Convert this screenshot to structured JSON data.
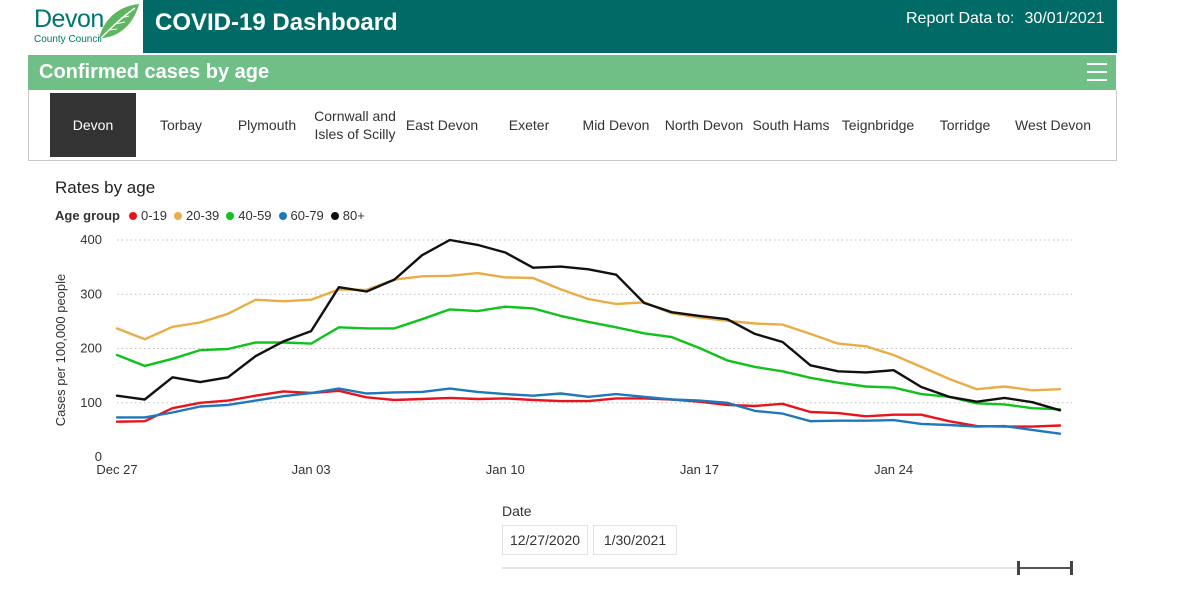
{
  "header": {
    "logo_name": "Devon",
    "logo_sub": "County Council",
    "title": "COVID-19 Dashboard",
    "report_label": "Report Data to:",
    "report_date": "30/01/2021"
  },
  "banner": {
    "title": "Confirmed cases by age"
  },
  "tabs": [
    {
      "label": "Devon",
      "active": true
    },
    {
      "label": "Torbay"
    },
    {
      "label": "Plymouth"
    },
    {
      "label": "Cornwall and Isles of Scilly"
    },
    {
      "label": "East Devon"
    },
    {
      "label": "Exeter"
    },
    {
      "label": "Mid Devon"
    },
    {
      "label": "North Devon"
    },
    {
      "label": "South Hams"
    },
    {
      "label": "Teignbridge"
    },
    {
      "label": "Torridge"
    },
    {
      "label": "West Devon"
    }
  ],
  "chart": {
    "title": "Rates by age",
    "legend_title": "Age group"
  },
  "date_slicer": {
    "label": "Date",
    "start": "12/27/2020",
    "end": "1/30/2021"
  },
  "chart_data": {
    "type": "line",
    "title": "Rates by age",
    "xlabel": "",
    "ylabel": "Cases per 100,000 people",
    "ylim": [
      0,
      400
    ],
    "yticks": [
      0,
      100,
      200,
      300,
      400
    ],
    "grid": true,
    "legend_position": "top-left",
    "x": [
      "2020-12-27",
      "2020-12-28",
      "2020-12-29",
      "2020-12-30",
      "2020-12-31",
      "2021-01-01",
      "2021-01-02",
      "2021-01-03",
      "2021-01-04",
      "2021-01-05",
      "2021-01-06",
      "2021-01-07",
      "2021-01-08",
      "2021-01-09",
      "2021-01-10",
      "2021-01-11",
      "2021-01-12",
      "2021-01-13",
      "2021-01-14",
      "2021-01-15",
      "2021-01-16",
      "2021-01-17",
      "2021-01-18",
      "2021-01-19",
      "2021-01-20",
      "2021-01-21",
      "2021-01-22",
      "2021-01-23",
      "2021-01-24",
      "2021-01-25",
      "2021-01-26",
      "2021-01-27",
      "2021-01-28",
      "2021-01-29",
      "2021-01-30"
    ],
    "xtick_labels": [
      {
        "index": 0,
        "label": "Dec 27"
      },
      {
        "index": 7,
        "label": "Jan 03"
      },
      {
        "index": 14,
        "label": "Jan 10"
      },
      {
        "index": 21,
        "label": "Jan 17"
      },
      {
        "index": 28,
        "label": "Jan 24"
      }
    ],
    "series": [
      {
        "name": "0-19",
        "color": "#e8141c",
        "values": [
          65,
          66,
          90,
          100,
          104,
          113,
          121,
          118,
          122,
          110,
          105,
          107,
          109,
          107,
          108,
          105,
          103,
          103,
          108,
          108,
          106,
          102,
          96,
          94,
          98,
          83,
          81,
          75,
          78,
          78,
          66,
          57,
          56,
          56,
          58
        ]
      },
      {
        "name": "20-39",
        "color": "#e9ad46",
        "values": [
          237,
          217,
          240,
          248,
          264,
          290,
          287,
          290,
          309,
          308,
          327,
          333,
          334,
          339,
          331,
          330,
          309,
          291,
          282,
          285,
          265,
          257,
          251,
          246,
          244,
          227,
          209,
          204,
          188,
          166,
          144,
          125,
          130,
          123,
          125
        ]
      },
      {
        "name": "40-59",
        "color": "#10c21c",
        "values": [
          188,
          168,
          181,
          197,
          199,
          211,
          211,
          209,
          239,
          237,
          237,
          254,
          272,
          269,
          277,
          274,
          260,
          249,
          239,
          228,
          221,
          201,
          178,
          166,
          158,
          146,
          137,
          130,
          128,
          116,
          111,
          99,
          97,
          90,
          88
        ]
      },
      {
        "name": "60-79",
        "color": "#1f77bc",
        "values": [
          73,
          73,
          82,
          93,
          96,
          104,
          112,
          118,
          126,
          117,
          119,
          120,
          126,
          120,
          116,
          113,
          117,
          111,
          116,
          111,
          106,
          104,
          100,
          85,
          80,
          66,
          67,
          67,
          68,
          61,
          59,
          56,
          57,
          50,
          43
        ]
      },
      {
        "name": "80+",
        "color": "#111111",
        "values": [
          113,
          106,
          147,
          138,
          147,
          186,
          213,
          232,
          313,
          305,
          327,
          372,
          400,
          391,
          377,
          349,
          351,
          346,
          336,
          284,
          267,
          260,
          254,
          227,
          212,
          169,
          158,
          156,
          160,
          129,
          111,
          102,
          109,
          101,
          86
        ]
      }
    ]
  }
}
